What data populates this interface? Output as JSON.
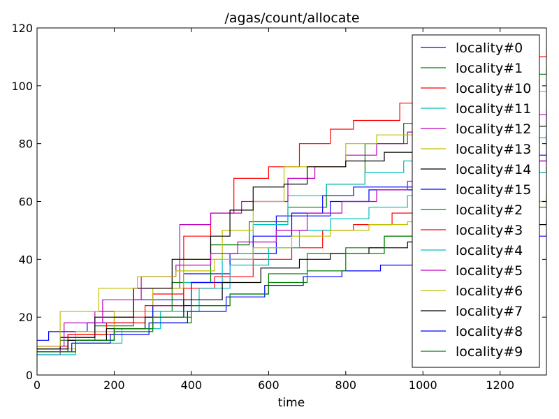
{
  "chart_data": {
    "type": "line",
    "step": true,
    "title": "/agas/count/allocate",
    "xlabel": "time",
    "ylabel": "",
    "xlim": [
      0,
      1320
    ],
    "ylim": [
      0,
      120
    ],
    "xticks": [
      0,
      200,
      400,
      600,
      800,
      1000,
      1200
    ],
    "yticks": [
      0,
      20,
      40,
      60,
      80,
      100,
      120
    ],
    "grid": false,
    "legend_position": "right",
    "series": [
      {
        "name": "locality#0",
        "color": "#0000ff",
        "x": [
          0,
          30,
          130,
          250,
          380,
          500,
          620,
          760,
          860,
          1000,
          1100,
          1200,
          1320
        ],
        "y": [
          12,
          15,
          18,
          26,
          35,
          42,
          55,
          60,
          64,
          66,
          70,
          76,
          83
        ]
      },
      {
        "name": "locality#1",
        "color": "#008000",
        "x": [
          0,
          60,
          150,
          250,
          350,
          450,
          550,
          650,
          750,
          850,
          950,
          1050,
          1150,
          1250,
          1320
        ],
        "y": [
          8,
          12,
          17,
          22,
          32,
          45,
          53,
          58,
          66,
          80,
          87,
          92,
          98,
          104,
          106
        ]
      },
      {
        "name": "locality#10",
        "color": "#ff0000",
        "x": [
          0,
          80,
          200,
          300,
          380,
          450,
          510,
          600,
          680,
          760,
          820,
          940,
          1000,
          1100,
          1200,
          1300,
          1320
        ],
        "y": [
          9,
          14,
          20,
          28,
          48,
          56,
          68,
          72,
          80,
          85,
          88,
          94,
          98,
          103,
          108,
          110,
          113
        ]
      },
      {
        "name": "locality#11",
        "color": "#00bfbf",
        "x": [
          0,
          100,
          200,
          300,
          380,
          480,
          560,
          650,
          750,
          850,
          950,
          1050,
          1150,
          1250,
          1320
        ],
        "y": [
          8,
          12,
          16,
          22,
          32,
          42,
          52,
          62,
          66,
          70,
          74,
          78,
          80,
          82,
          84
        ]
      },
      {
        "name": "locality#12",
        "color": "#bf00bf",
        "x": [
          0,
          60,
          150,
          250,
          370,
          450,
          530,
          650,
          720,
          800,
          880,
          960,
          1050,
          1150,
          1250,
          1320
        ],
        "y": [
          7,
          13,
          22,
          30,
          52,
          56,
          60,
          68,
          72,
          76,
          80,
          84,
          86,
          88,
          90,
          92
        ]
      },
      {
        "name": "locality#13",
        "color": "#bfbf00",
        "x": [
          0,
          100,
          200,
          300,
          380,
          480,
          560,
          640,
          700,
          800,
          880,
          980,
          1100,
          1200,
          1320
        ],
        "y": [
          9,
          15,
          22,
          30,
          40,
          50,
          60,
          72,
          72,
          80,
          83,
          90,
          95,
          98,
          100
        ]
      },
      {
        "name": "locality#14",
        "color": "#000000",
        "x": [
          0,
          60,
          150,
          250,
          350,
          450,
          500,
          560,
          640,
          700,
          800,
          900,
          1000,
          1100,
          1200,
          1320
        ],
        "y": [
          9,
          13,
          20,
          30,
          40,
          48,
          57,
          65,
          66,
          72,
          74,
          77,
          80,
          84,
          86,
          90
        ]
      },
      {
        "name": "locality#15",
        "color": "#0000ff",
        "x": [
          0,
          80,
          200,
          300,
          400,
          500,
          560,
          660,
          740,
          820,
          900,
          1000,
          1100,
          1200,
          1320
        ],
        "y": [
          8,
          12,
          16,
          24,
          32,
          40,
          48,
          56,
          62,
          65,
          65,
          70,
          72,
          74,
          76
        ]
      },
      {
        "name": "locality#2",
        "color": "#008000",
        "x": [
          0,
          100,
          200,
          300,
          400,
          500,
          600,
          700,
          800,
          900,
          1000,
          1100,
          1200,
          1320
        ],
        "y": [
          8,
          12,
          15,
          18,
          24,
          28,
          35,
          42,
          44,
          48,
          54,
          57,
          60,
          63
        ]
      },
      {
        "name": "locality#3",
        "color": "#ff0000",
        "x": [
          0,
          80,
          180,
          280,
          380,
          460,
          560,
          660,
          740,
          820,
          920,
          1020,
          1120,
          1220,
          1320
        ],
        "y": [
          10,
          14,
          18,
          24,
          30,
          34,
          40,
          44,
          50,
          52,
          56,
          60,
          65,
          70,
          72
        ]
      },
      {
        "name": "locality#4",
        "color": "#00bfbf",
        "x": [
          0,
          100,
          220,
          320,
          420,
          500,
          600,
          680,
          760,
          860,
          960,
          1060,
          1160,
          1260,
          1320
        ],
        "y": [
          7,
          11,
          16,
          22,
          30,
          38,
          44,
          50,
          54,
          58,
          62,
          66,
          68,
          70,
          72
        ]
      },
      {
        "name": "locality#5",
        "color": "#bf00bf",
        "x": [
          0,
          70,
          170,
          270,
          360,
          450,
          520,
          620,
          700,
          790,
          880,
          960,
          1060,
          1160,
          1260,
          1320
        ],
        "y": [
          10,
          18,
          26,
          34,
          38,
          42,
          46,
          50,
          56,
          60,
          64,
          67,
          70,
          72,
          74,
          76
        ]
      },
      {
        "name": "locality#6",
        "color": "#bfbf00",
        "x": [
          0,
          60,
          160,
          260,
          360,
          460,
          560,
          660,
          760,
          860,
          960,
          1060,
          1160,
          1260,
          1320
        ],
        "y": [
          10,
          22,
          30,
          34,
          36,
          40,
          44,
          48,
          50,
          52,
          53,
          56,
          58,
          60,
          62
        ]
      },
      {
        "name": "locality#7",
        "color": "#000000",
        "x": [
          0,
          80,
          180,
          280,
          380,
          480,
          580,
          680,
          760,
          860,
          960,
          1060,
          1160,
          1260,
          1320
        ],
        "y": [
          9,
          12,
          16,
          20,
          26,
          32,
          37,
          40,
          42,
          44,
          46,
          48,
          50,
          52,
          54
        ]
      },
      {
        "name": "locality#8",
        "color": "#0000ff",
        "x": [
          0,
          90,
          190,
          290,
          390,
          490,
          590,
          690,
          790,
          890,
          990,
          1090,
          1190,
          1290,
          1320
        ],
        "y": [
          8,
          11,
          14,
          18,
          22,
          27,
          31,
          34,
          36,
          38,
          41,
          44,
          46,
          48,
          49
        ]
      },
      {
        "name": "locality#9",
        "color": "#008000",
        "x": [
          0,
          100,
          200,
          300,
          400,
          500,
          600,
          700,
          800,
          900,
          1000,
          1100,
          1200,
          1320
        ],
        "y": [
          8,
          12,
          16,
          20,
          24,
          28,
          32,
          36,
          42,
          48,
          52,
          56,
          58,
          60
        ]
      }
    ]
  }
}
